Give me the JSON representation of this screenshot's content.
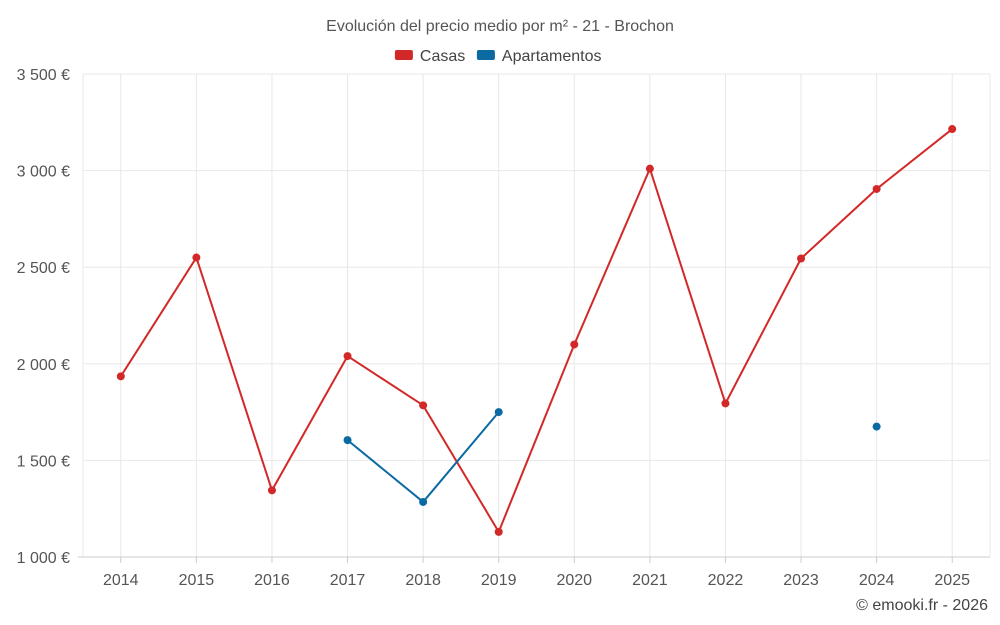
{
  "chart_data": {
    "type": "line",
    "title": "Evolución del precio medio por m² - 21 - Brochon",
    "x": [
      2014,
      2015,
      2016,
      2017,
      2018,
      2019,
      2020,
      2021,
      2022,
      2023,
      2024,
      2025
    ],
    "x_tick_labels": [
      "2014",
      "2015",
      "2016",
      "2017",
      "2018",
      "2019",
      "2020",
      "2021",
      "2022",
      "2023",
      "2024",
      "2025"
    ],
    "ylim": [
      1000,
      3500
    ],
    "y_ticks": [
      1000,
      1500,
      2000,
      2500,
      3000,
      3500
    ],
    "y_tick_labels": [
      "1 000 €",
      "1 500 €",
      "2 000 €",
      "2 500 €",
      "3 000 €",
      "3 500 €"
    ],
    "grid": true,
    "legend_position": "top-center",
    "series": [
      {
        "name": "Casas",
        "color": "#d32828",
        "values": [
          1935,
          2550,
          1345,
          2040,
          1785,
          1130,
          2100,
          3010,
          1795,
          2545,
          2905,
          3215
        ]
      },
      {
        "name": "Apartamentos",
        "color": "#0a6aa1",
        "values": [
          null,
          null,
          null,
          1605,
          1285,
          1750,
          null,
          null,
          null,
          null,
          1675,
          null
        ]
      }
    ]
  },
  "credit": "© emooki.fr - 2026"
}
